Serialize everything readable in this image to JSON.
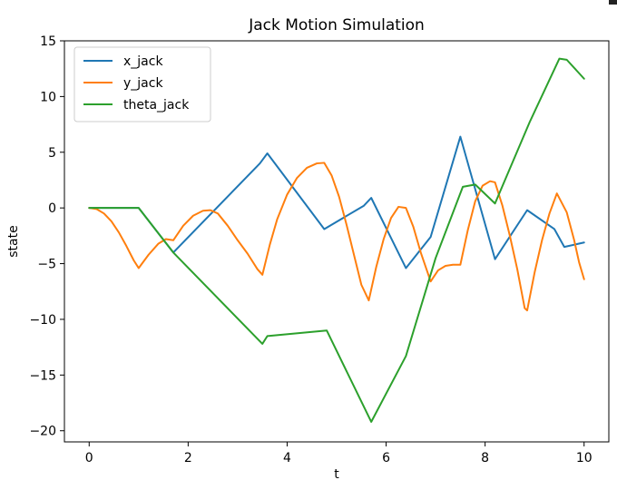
{
  "chart_data": {
    "type": "line",
    "title": "Jack Motion Simulation",
    "xlabel": "t",
    "ylabel": "state",
    "xlim": [
      -0.5,
      10.5
    ],
    "ylim": [
      -21,
      15
    ],
    "xticks": [
      0,
      2,
      4,
      6,
      8,
      10
    ],
    "xtick_labels": [
      "0",
      "2",
      "4",
      "6",
      "8",
      "10"
    ],
    "yticks": [
      -20,
      -15,
      -10,
      -5,
      0,
      5,
      10,
      15
    ],
    "ytick_labels": [
      "−20",
      "−15",
      "−10",
      "−5",
      "0",
      "5",
      "10",
      "15"
    ],
    "grid": false,
    "legend": "top-left",
    "series": [
      {
        "name": "x_jack",
        "color": "#1f77b4",
        "x": [
          0,
          1.0,
          1.7,
          3.45,
          3.6,
          4.75,
          5.55,
          5.7,
          6.4,
          6.9,
          7.5,
          8.2,
          8.85,
          9.4,
          9.6,
          10.0
        ],
        "y": [
          0,
          0,
          -4.0,
          4.0,
          4.9,
          -1.9,
          0.2,
          0.9,
          -5.4,
          -2.6,
          6.4,
          -4.6,
          -0.2,
          -1.9,
          -3.5,
          -3.1
        ]
      },
      {
        "name": "y_jack",
        "color": "#ff7f0e",
        "x": [
          0,
          0.15,
          0.3,
          0.45,
          0.6,
          0.75,
          0.9,
          1.0,
          1.2,
          1.4,
          1.55,
          1.7,
          1.9,
          2.1,
          2.3,
          2.45,
          2.6,
          2.8,
          3.0,
          3.2,
          3.4,
          3.5,
          3.65,
          3.8,
          4.0,
          4.2,
          4.4,
          4.6,
          4.75,
          4.9,
          5.05,
          5.2,
          5.35,
          5.5,
          5.65,
          5.8,
          5.95,
          6.1,
          6.25,
          6.4,
          6.55,
          6.7,
          6.9,
          7.05,
          7.2,
          7.35,
          7.5,
          7.65,
          7.8,
          7.95,
          8.1,
          8.2,
          8.35,
          8.5,
          8.65,
          8.8,
          8.85,
          9.0,
          9.15,
          9.3,
          9.45,
          9.65,
          9.8,
          9.9,
          10.0
        ],
        "y": [
          0,
          -0.1,
          -0.5,
          -1.2,
          -2.2,
          -3.4,
          -4.7,
          -5.4,
          -4.2,
          -3.2,
          -2.8,
          -2.9,
          -1.6,
          -0.7,
          -0.25,
          -0.2,
          -0.5,
          -1.6,
          -2.9,
          -4.1,
          -5.5,
          -6.0,
          -3.3,
          -1.0,
          1.2,
          2.7,
          3.6,
          4.0,
          4.05,
          2.9,
          1.0,
          -1.5,
          -4.2,
          -6.9,
          -8.3,
          -5.3,
          -2.8,
          -0.9,
          0.1,
          0.0,
          -1.7,
          -4.0,
          -6.6,
          -5.6,
          -5.2,
          -5.1,
          -5.1,
          -2.0,
          0.6,
          2.0,
          2.4,
          2.3,
          0.2,
          -2.5,
          -5.5,
          -9.0,
          -9.2,
          -5.8,
          -2.9,
          -0.5,
          1.3,
          -0.4,
          -2.9,
          -4.9,
          -6.4
        ]
      },
      {
        "name": "theta_jack",
        "color": "#2ca02c",
        "x": [
          0,
          1.0,
          1.7,
          3.5,
          3.6,
          4.8,
          5.7,
          6.4,
          7.0,
          7.55,
          7.8,
          8.2,
          8.9,
          9.5,
          9.65,
          10.0
        ],
        "y": [
          0,
          0,
          -4.0,
          -12.2,
          -11.5,
          -11.0,
          -19.2,
          -13.3,
          -4.5,
          1.9,
          2.1,
          0.4,
          7.7,
          13.4,
          13.3,
          11.6
        ]
      }
    ]
  }
}
